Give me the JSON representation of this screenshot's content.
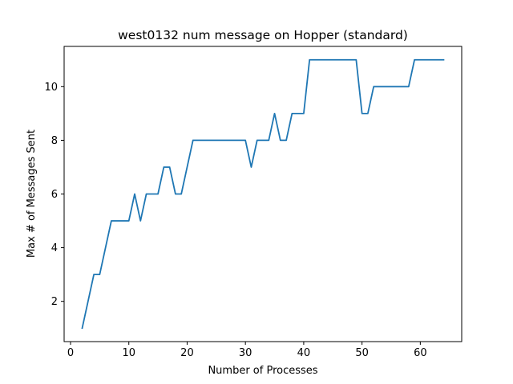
{
  "chart_data": {
    "type": "line",
    "title": "west0132 num message on Hopper (standard)",
    "xlabel": "Number of Processes",
    "ylabel": "Max # of Messages Sent",
    "xlim": [
      -1.1,
      67.1
    ],
    "ylim": [
      0.5,
      11.5
    ],
    "xticks": [
      0,
      10,
      20,
      30,
      40,
      50,
      60
    ],
    "yticks": [
      2,
      4,
      6,
      8,
      10
    ],
    "grid": false,
    "series": [
      {
        "color": "#1f77b4",
        "x": [
          2,
          3,
          4,
          5,
          6,
          7,
          8,
          9,
          10,
          11,
          12,
          13,
          14,
          15,
          16,
          17,
          18,
          19,
          20,
          21,
          22,
          23,
          24,
          25,
          26,
          27,
          28,
          29,
          30,
          31,
          32,
          33,
          34,
          35,
          36,
          37,
          38,
          39,
          40,
          41,
          42,
          43,
          44,
          45,
          46,
          47,
          48,
          49,
          50,
          51,
          52,
          53,
          54,
          55,
          56,
          57,
          58,
          59,
          60,
          61,
          62,
          63,
          64
        ],
        "values": [
          1,
          2,
          3,
          3,
          4,
          5,
          5,
          5,
          5,
          6,
          5,
          6,
          6,
          6,
          7,
          7,
          6,
          6,
          7,
          8,
          8,
          8,
          8,
          8,
          8,
          8,
          8,
          8,
          8,
          7,
          8,
          8,
          8,
          9,
          8,
          8,
          9,
          9,
          9,
          11,
          11,
          11,
          11,
          11,
          11,
          11,
          11,
          11,
          9,
          9,
          10,
          10,
          10,
          10,
          10,
          10,
          10,
          11,
          11,
          11,
          11,
          11,
          11
        ]
      }
    ]
  }
}
